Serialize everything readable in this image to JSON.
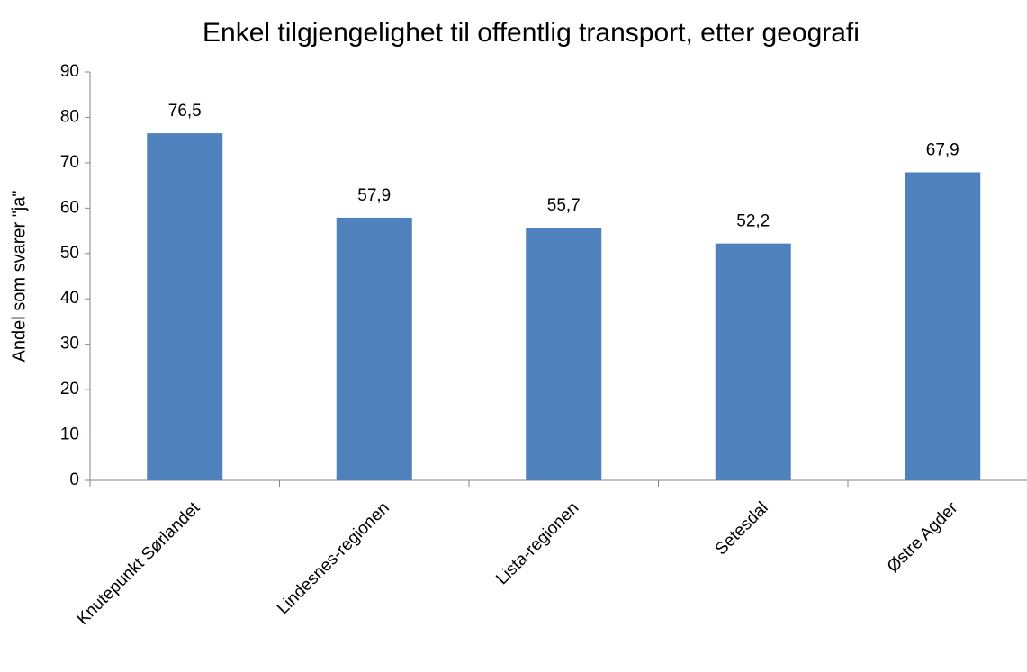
{
  "chart_data": {
    "type": "bar",
    "title": "Enkel tilgjengelighet til offentlig transport, etter geografi",
    "y_label": "Andel som svarer \"ja\"",
    "categories": [
      "Knutepunkt Sørlandet",
      "Lindesnes-regionen",
      "Lista-regionen",
      "Setesdal",
      "Østre Agder"
    ],
    "values": [
      76.5,
      57.9,
      55.7,
      52.2,
      67.9
    ],
    "value_labels": [
      "76,5",
      "57,9",
      "55,7",
      "52,2",
      "67,9"
    ],
    "color": "#4f81bd",
    "ylim": [
      0,
      90
    ],
    "yticks": [
      0,
      10,
      20,
      30,
      40,
      50,
      60,
      70,
      80,
      90
    ],
    "grid": false
  }
}
